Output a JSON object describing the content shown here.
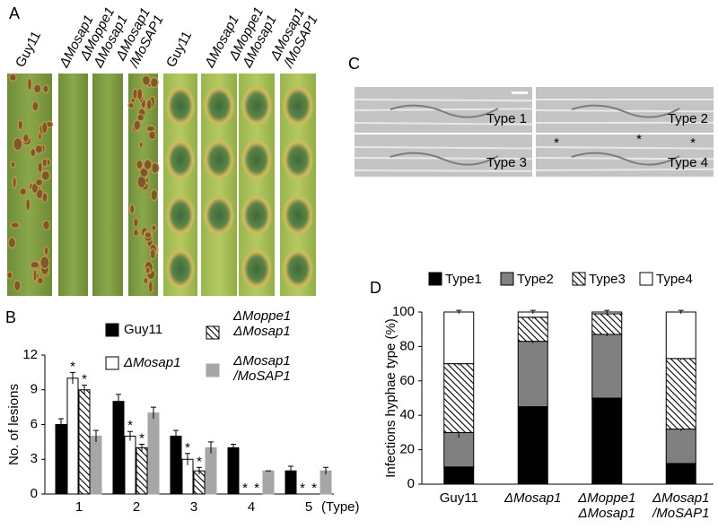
{
  "panel_labels": [
    "A",
    "B",
    "C",
    "D"
  ],
  "leaf_labels": [
    "Guy11",
    "ΔMosap1",
    "ΔMoppe1 ΔMosap1",
    "ΔMosap1 /MoSAP1",
    "Guy11",
    "ΔMosap1",
    "ΔMoppe1 ΔMosap1",
    "ΔMosap1 /MoSAP1"
  ],
  "micrograph_labels": [
    "Type 1",
    "Type 2",
    "Type 3",
    "Type 4"
  ],
  "micrograph_asterisks": [
    "*",
    "*",
    "*"
  ],
  "chart_data": [
    {
      "type": "bar",
      "categories": [
        "1",
        "2",
        "3",
        "4",
        "5"
      ],
      "x_label": "(Type)",
      "y_label": "No. of lesions",
      "ylim": [
        0,
        12
      ],
      "yticks": [
        0,
        3,
        6,
        9,
        12
      ],
      "series": [
        {
          "name": "Guy11",
          "color": "#000000",
          "values": [
            6,
            8,
            5,
            4,
            2
          ],
          "errors": [
            0.5,
            0.6,
            0.5,
            0.3,
            0.4
          ]
        },
        {
          "name": "ΔMosap1",
          "color": "#ffffff",
          "values": [
            10,
            5,
            3,
            0,
            0
          ],
          "errors": [
            0.5,
            0.4,
            0.5,
            0,
            0
          ],
          "significance": [
            "*",
            "*",
            "*",
            "*",
            "*"
          ]
        },
        {
          "name": "ΔMoppe1 ΔMosap1",
          "color": "#ffffff",
          "hatch": true,
          "values": [
            9,
            4,
            2,
            0,
            0
          ],
          "errors": [
            0.4,
            0.3,
            0.3,
            0,
            0
          ],
          "significance": [
            "*",
            "*",
            "*",
            "*",
            "*"
          ]
        },
        {
          "name": "ΔMosap1 /MoSAP1",
          "color": "#a6a6a6",
          "values": [
            5,
            7,
            4,
            2,
            2
          ],
          "errors": [
            0.5,
            0.5,
            0.5,
            0,
            0.3
          ]
        }
      ]
    },
    {
      "type": "stacked_bar",
      "categories": [
        "Guy11",
        "ΔMosap1",
        "ΔMoppe1 ΔMosap1",
        "ΔMosap1 /MoSAP1"
      ],
      "y_label": "Infections hyphae type (%)",
      "ylim": [
        0,
        100
      ],
      "yticks": [
        0,
        20,
        40,
        60,
        80,
        100
      ],
      "series": [
        {
          "name": "Type1",
          "color": "#000000",
          "values": [
            10,
            45,
            50,
            12
          ],
          "errors": [
            2,
            2,
            3,
            2
          ]
        },
        {
          "name": "Type2",
          "color": "#808080",
          "values": [
            20,
            38,
            37,
            20
          ],
          "errors": [
            3,
            1,
            1,
            1
          ]
        },
        {
          "name": "Type3",
          "color": "#ffffff",
          "hatch": true,
          "values": [
            40,
            14,
            12,
            41
          ],
          "errors": [
            1,
            1,
            1,
            1
          ]
        },
        {
          "name": "Type4",
          "color": "#ffffff",
          "values": [
            30,
            3,
            1,
            27
          ],
          "errors": [
            1,
            1,
            1,
            1
          ]
        }
      ]
    }
  ]
}
